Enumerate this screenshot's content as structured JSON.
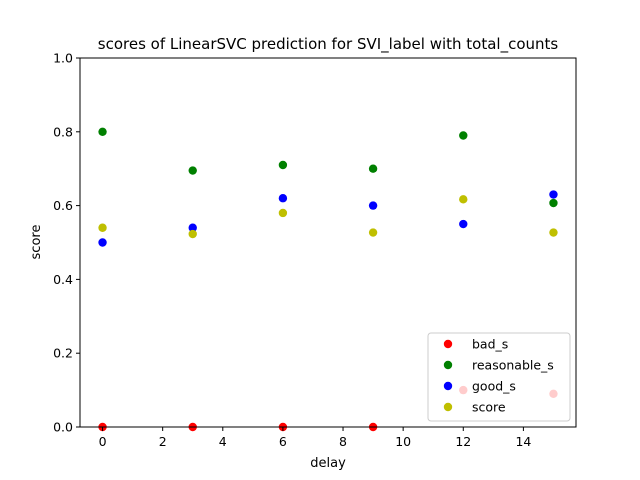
{
  "chart_data": {
    "type": "scatter",
    "title": "scores of LinearSVC prediction for SVI_label with total_counts",
    "xlabel": "delay",
    "ylabel": "score",
    "xlim": [
      -0.75,
      15.75
    ],
    "ylim": [
      0,
      1.0
    ],
    "xticks": [
      0,
      2,
      4,
      6,
      8,
      10,
      12,
      14
    ],
    "yticks": [
      0.0,
      0.2,
      0.4,
      0.6,
      0.8,
      1.0
    ],
    "xtick_labels": [
      "0",
      "2",
      "4",
      "6",
      "8",
      "10",
      "12",
      "14"
    ],
    "ytick_labels": [
      "0.0",
      "0.2",
      "0.4",
      "0.6",
      "0.8",
      "1.0"
    ],
    "x": [
      0,
      3,
      6,
      9,
      12,
      15
    ],
    "grid": false,
    "legend_position": "lower-right",
    "series": [
      {
        "name": "bad_s",
        "color": "#ff0000",
        "values": [
          0.0,
          0.0,
          0.0,
          0.0,
          0.1,
          0.09
        ]
      },
      {
        "name": "reasonable_s",
        "color": "#008000",
        "values": [
          0.8,
          0.695,
          0.71,
          0.7,
          0.79,
          0.607
        ]
      },
      {
        "name": "good_s",
        "color": "#0000ff",
        "values": [
          0.5,
          0.54,
          0.62,
          0.6,
          0.55,
          0.63
        ]
      },
      {
        "name": "score",
        "color": "#bfbf00",
        "values": [
          0.54,
          0.523,
          0.58,
          0.527,
          0.617,
          0.527
        ]
      }
    ]
  }
}
